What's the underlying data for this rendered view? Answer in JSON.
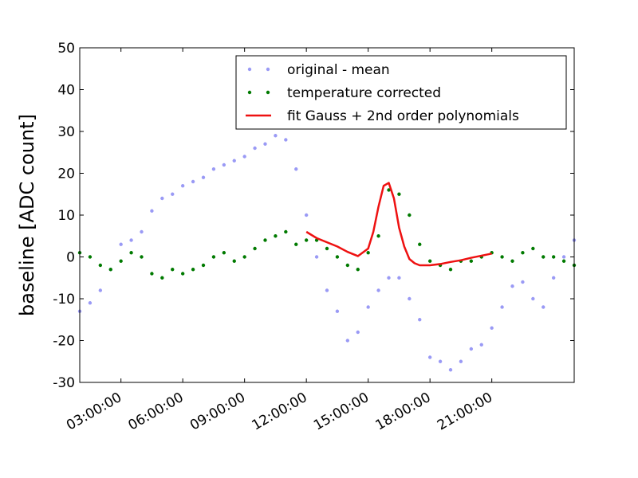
{
  "chart_data": {
    "type": "scatter",
    "ylabel": "baseline [ADC count]",
    "xlabel": "",
    "title": "",
    "xlim_hours": [
      1.0,
      25.0
    ],
    "ylim": [
      -30,
      50
    ],
    "y_ticks": [
      -30,
      -20,
      -10,
      0,
      10,
      20,
      30,
      40,
      50
    ],
    "x_ticks": [
      {
        "hour": 3,
        "label": "03:00:00"
      },
      {
        "hour": 6,
        "label": "06:00:00"
      },
      {
        "hour": 9,
        "label": "09:00:00"
      },
      {
        "hour": 12,
        "label": "12:00:00"
      },
      {
        "hour": 15,
        "label": "15:00:00"
      },
      {
        "hour": 18,
        "label": "18:00:00"
      },
      {
        "hour": 21,
        "label": "21:00:00"
      }
    ],
    "legend_position": "top-right",
    "series": [
      {
        "name": "original - mean",
        "style": "points",
        "color": "#9a9af5",
        "x": [
          1.0,
          1.5,
          2.0,
          2.5,
          3.0,
          3.5,
          4.0,
          4.5,
          5.0,
          5.5,
          6.0,
          6.5,
          7.0,
          7.5,
          8.0,
          8.5,
          9.0,
          9.5,
          10.0,
          10.5,
          11.0,
          11.5,
          12.0,
          12.5,
          13.0,
          13.5,
          14.0,
          14.5,
          15.0,
          15.5,
          16.0,
          16.5,
          17.0,
          17.5,
          18.0,
          18.5,
          19.0,
          19.5,
          20.0,
          20.5,
          21.0,
          21.5,
          22.0,
          22.5,
          23.0,
          23.5,
          24.0,
          24.5,
          25.0
        ],
        "y": [
          -13,
          -11,
          -8,
          -3,
          3,
          4,
          6,
          11,
          14,
          15,
          17,
          18,
          19,
          21,
          22,
          23,
          24,
          26,
          27,
          29,
          28,
          21,
          10,
          0,
          -8,
          -13,
          -20,
          -18,
          -12,
          -8,
          -5,
          -5,
          -10,
          -15,
          -24,
          -25,
          -27,
          -25,
          -22,
          -21,
          -17,
          -12,
          -7,
          -6,
          -10,
          -12,
          -5,
          0,
          4
        ]
      },
      {
        "name": "temperature corrected",
        "style": "points",
        "color": "#007a00",
        "x": [
          1.0,
          1.5,
          2.0,
          2.5,
          3.0,
          3.5,
          4.0,
          4.5,
          5.0,
          5.5,
          6.0,
          6.5,
          7.0,
          7.5,
          8.0,
          8.5,
          9.0,
          9.5,
          10.0,
          10.5,
          11.0,
          11.5,
          12.0,
          12.5,
          13.0,
          13.5,
          14.0,
          14.5,
          15.0,
          15.5,
          16.0,
          16.5,
          17.0,
          17.5,
          18.0,
          18.5,
          19.0,
          19.5,
          20.0,
          20.5,
          21.0,
          21.5,
          22.0,
          22.5,
          23.0,
          23.5,
          24.0,
          24.5,
          25.0
        ],
        "y": [
          1,
          0,
          -2,
          -3,
          -1,
          1,
          0,
          -4,
          -5,
          -3,
          -4,
          -3,
          -2,
          0,
          1,
          -1,
          0,
          2,
          4,
          5,
          6,
          3,
          4,
          4,
          2,
          0,
          -2,
          -3,
          1,
          5,
          16,
          15,
          10,
          3,
          -1,
          -2,
          -3,
          -1,
          -1,
          0,
          1,
          0,
          -1,
          1,
          2,
          0,
          0,
          -1,
          -2
        ]
      },
      {
        "name": "fit Gauss + 2nd order polynomials",
        "style": "line",
        "color": "#ee1111",
        "x": [
          12.0,
          12.5,
          13.0,
          13.5,
          14.0,
          14.5,
          15.0,
          15.25,
          15.5,
          15.75,
          16.0,
          16.25,
          16.5,
          16.75,
          17.0,
          17.25,
          17.5,
          18.0,
          18.5,
          19.0,
          19.5,
          20.0,
          20.5,
          21.0
        ],
        "y": [
          6,
          4.5,
          3.5,
          2.5,
          1.2,
          0.2,
          2,
          6,
          12,
          17,
          17.7,
          14,
          7,
          2.5,
          -0.5,
          -1.5,
          -2,
          -2,
          -1.7,
          -1.2,
          -0.8,
          -0.2,
          0.3,
          0.8
        ]
      }
    ]
  }
}
